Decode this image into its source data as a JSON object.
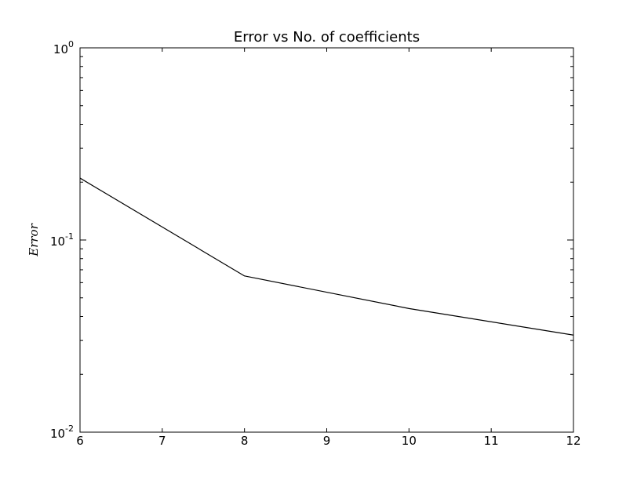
{
  "chart_data": {
    "type": "line",
    "title": "Error vs No. of coefficients",
    "xlabel": "",
    "ylabel": "Error",
    "xlim": [
      6,
      12
    ],
    "ylim": [
      0.01,
      1
    ],
    "yscale": "log",
    "grid": false,
    "x_ticks": [
      {
        "value": 6,
        "label": "6"
      },
      {
        "value": 7,
        "label": "7"
      },
      {
        "value": 8,
        "label": "8"
      },
      {
        "value": 9,
        "label": "9"
      },
      {
        "value": 10,
        "label": "10"
      },
      {
        "value": 11,
        "label": "11"
      },
      {
        "value": 12,
        "label": "12"
      }
    ],
    "y_ticks": [
      {
        "value": 0.01,
        "base": "10",
        "exponent": "-2"
      },
      {
        "value": 0.1,
        "base": "10",
        "exponent": "-1"
      },
      {
        "value": 1,
        "base": "10",
        "exponent": "0"
      }
    ],
    "series": [
      {
        "color": "#000000",
        "x": [
          6,
          8,
          10,
          12
        ],
        "y": [
          0.21,
          0.065,
          0.044,
          0.032
        ]
      }
    ]
  }
}
